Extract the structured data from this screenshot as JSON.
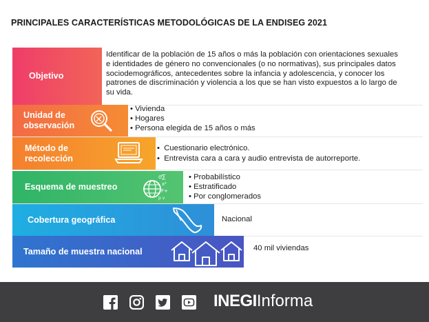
{
  "title": "PRINCIPALES CARACTERÍSTICAS METODOLÓGICAS DE LA ENDISEG 2021",
  "rows": [
    {
      "label": "Objetivo",
      "color": "#ee4466",
      "lines": [
        "Identificar de la población de 15 años o más la población con orientaciones sexuales",
        "e identidades de género no convencionales (o no normativas), sus principales datos",
        "sociodemográficos, antecedentes sobre la infancia y adolescencia, y conocer los",
        "patrones de discriminación y violencia a los que se han visto expuestos a lo largo de",
        "su vida."
      ]
    },
    {
      "label_lines": [
        "Unidad de",
        "observación"
      ],
      "color": "#f47b3c",
      "bullets": [
        "Vivienda",
        "Hogares",
        "Persona elegida de 15 años o más"
      ]
    },
    {
      "label_lines": [
        "Método de",
        "recolección"
      ],
      "color": "#f6a233",
      "bullets": [
        "Cuestionario electrónico.",
        "Entrevista cara a cara y audio entrevista de autorreporte."
      ]
    },
    {
      "label": "Esquema de muestreo",
      "color": "#46c06e",
      "bullets": [
        "Probabilístico",
        "Estratificado",
        "Por conglomerados"
      ]
    },
    {
      "label": "Cobertura geográfica",
      "color": "#23a9e1",
      "value": "Nacional"
    },
    {
      "label": "Tamaño de muestra nacional",
      "color": "#3f66c9",
      "value": "40 mil viviendas"
    }
  ],
  "footer": {
    "social": [
      "facebook-icon",
      "instagram-icon",
      "twitter-icon",
      "youtube-icon"
    ],
    "brand_bold": "INEGI",
    "brand_regular": "Informa",
    "bg": "#3e3e40"
  }
}
